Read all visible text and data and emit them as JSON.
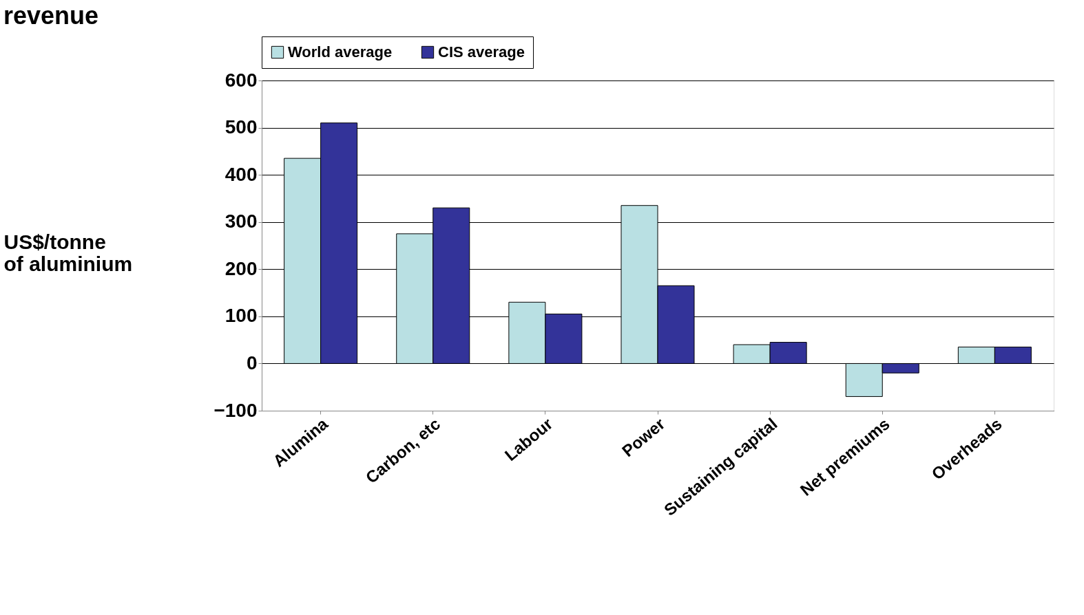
{
  "chart_data": {
    "type": "bar",
    "title": "revenue",
    "ylabel": "US$/tonne of aluminium",
    "categories": [
      "Alumina",
      "Carbon, etc",
      "Labour",
      "Power",
      "Sustaining capital",
      "Net premiums",
      "Overheads"
    ],
    "series": [
      {
        "name": "World average",
        "color": "#b9e0e3",
        "values": [
          435,
          275,
          130,
          335,
          40,
          -70,
          35
        ]
      },
      {
        "name": "CIS average",
        "color": "#333399",
        "values": [
          510,
          330,
          105,
          165,
          45,
          -20,
          35
        ]
      }
    ],
    "ylim": [
      -100,
      600
    ],
    "yticks": [
      -100,
      0,
      100,
      200,
      300,
      400,
      500,
      600
    ],
    "grid": "y",
    "legend": "top"
  }
}
